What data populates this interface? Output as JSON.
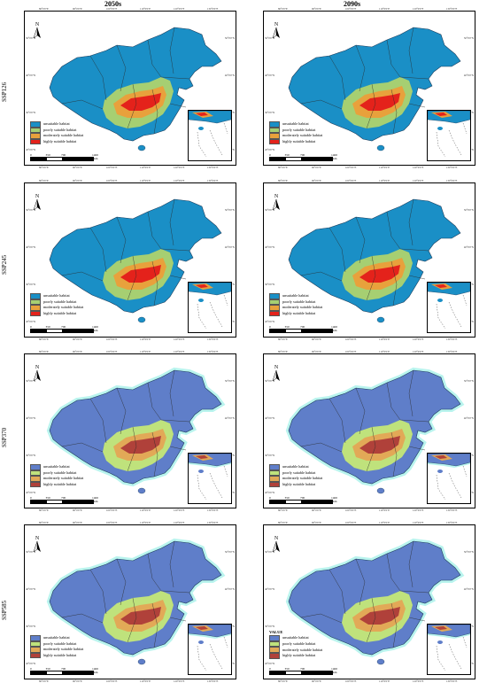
{
  "columns": [
    "2050s",
    "2090s"
  ],
  "rows": [
    "SSP126",
    "SSP245",
    "SSP370",
    "SSP585"
  ],
  "north_label": "N",
  "scale": {
    "ticks": [
      "0",
      "350",
      "700",
      "1400"
    ],
    "unit": "km"
  },
  "lon_ticks": [
    "80°0'0\"E",
    "90°0'0\"E",
    "100°0'0\"E",
    "110°0'0\"E",
    "120°0'0\"E",
    "130°0'0\"E"
  ],
  "lat_ticks": [
    "50°0'0\"N",
    "40°0'0\"N",
    "30°0'0\"N",
    "20°0'0\"N"
  ],
  "legend_classes": [
    "unsuitable habitat",
    "poorly suitable habitat",
    "moderately suitable habitat",
    "highly suitable habitat"
  ],
  "legend_title_panel_8": "VALUE",
  "palettes": {
    "SSP126": [
      "#1a8fc6",
      "#a6cf72",
      "#e8a13c",
      "#e4221b"
    ],
    "SSP245": [
      "#1a8fc6",
      "#a6cf72",
      "#e8a13c",
      "#e4221b"
    ],
    "SSP370": [
      "#5f7ec9",
      "#bfe27c",
      "#e2a957",
      "#b0413a"
    ],
    "SSP585": [
      "#5f7ec9",
      "#bfe27c",
      "#e2a957",
      "#b0413a"
    ]
  },
  "halo_color": "#b9f4ee"
}
